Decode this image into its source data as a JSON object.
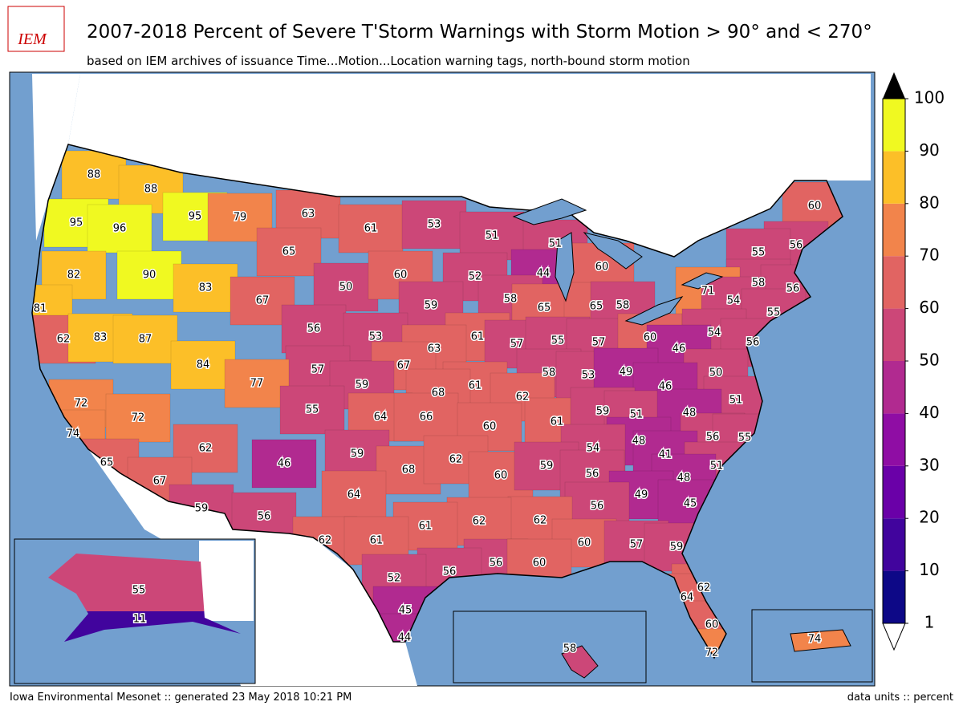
{
  "header": {
    "logo": "IEM",
    "title": "2007-2018 Percent of Severe T'Storm Warnings with Storm Motion > 90° and < 270°",
    "subtitle": "based on IEM archives of issuance Time...Motion...Location warning tags, north-bound storm motion"
  },
  "map": {
    "labels": [
      88,
      88,
      95,
      96,
      95,
      79,
      63,
      61,
      53,
      51,
      51,
      60,
      56,
      55,
      65,
      82,
      90,
      83,
      50,
      60,
      52,
      44,
      60,
      58,
      56,
      71,
      54,
      55,
      81,
      67,
      59,
      58,
      65,
      65,
      58,
      56,
      62,
      83,
      87,
      53,
      61,
      57,
      55,
      57,
      60,
      54,
      56,
      46,
      63,
      84,
      57,
      67,
      61,
      58,
      53,
      49,
      50,
      77,
      59,
      68,
      62,
      46,
      51,
      64,
      66,
      55,
      61,
      59,
      51,
      48,
      72,
      72,
      60,
      74,
      56,
      55,
      48,
      54,
      62,
      41,
      65,
      46,
      59,
      68,
      62,
      60,
      59,
      56,
      51,
      48,
      67,
      64,
      49,
      45,
      59,
      56,
      56,
      62,
      62,
      61,
      60,
      57,
      59,
      62,
      61,
      56,
      60,
      56,
      52,
      62,
      64,
      45,
      44,
      60,
      72,
      55,
      11,
      58,
      74
    ],
    "legend": {
      "ticks": [
        1,
        10,
        20,
        30,
        40,
        50,
        60,
        70,
        80,
        90,
        100
      ],
      "colors": [
        "#0d0887",
        "#41049d",
        "#6a00a8",
        "#8f0da4",
        "#b12a90",
        "#cc4778",
        "#e16462",
        "#f2844b",
        "#fcbf28",
        "#f0f921"
      ]
    }
  },
  "footer": {
    "left": "Iowa Environmental Mesonet :: generated 23 May 2018 10:21 PM",
    "right": "data units :: percent"
  }
}
